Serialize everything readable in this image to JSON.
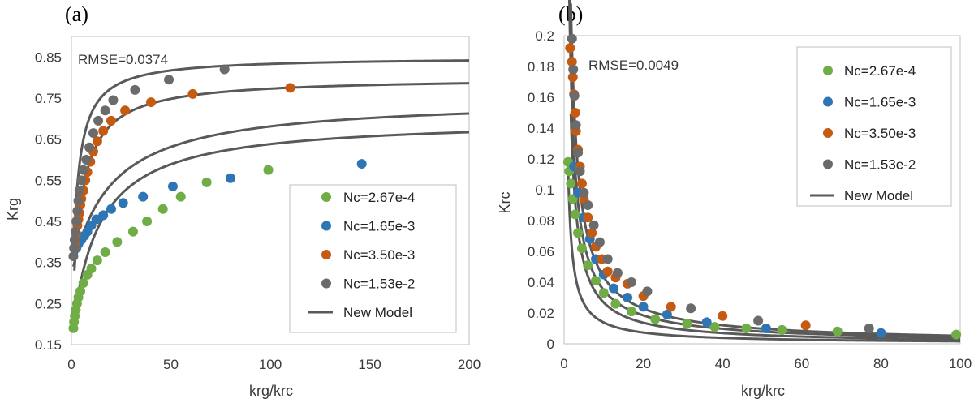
{
  "colors": {
    "green": "#70ad47",
    "blue": "#2e75b6",
    "orange": "#c55a11",
    "gray": "#6b6b6b",
    "model": "#595959"
  },
  "chart_data": [
    {
      "type": "scatter",
      "panel_label": "(a)",
      "annotation": "RMSE=0.0374",
      "xlabel": "krg/krc",
      "ylabel": "Krg",
      "xlim": [
        0,
        200
      ],
      "ylim": [
        0.15,
        0.9
      ],
      "xticks": [
        0,
        50,
        100,
        150,
        200
      ],
      "xtick_labels": [
        "0",
        "50",
        "100",
        "150",
        "200"
      ],
      "yticks": [
        0.15,
        0.25,
        0.35,
        0.45,
        0.55,
        0.65,
        0.75,
        0.85
      ],
      "ytick_labels": [
        "0.15",
        "0.25",
        "0.35",
        "0.45",
        "0.55",
        "0.65",
        "0.75",
        "0.85"
      ],
      "legend_position": "lower-right",
      "series": [
        {
          "name": "Nc=2.67e-4",
          "color_key": "green",
          "x": [
            1.0,
            1.3,
            1.7,
            2.2,
            2.8,
            3.5,
            4.5,
            6.0,
            8.0,
            10.0,
            13.0,
            17.0,
            23.0,
            31.0,
            38.0,
            46.0,
            55.0,
            68.0,
            99.0
          ],
          "y": [
            0.19,
            0.205,
            0.22,
            0.235,
            0.25,
            0.265,
            0.28,
            0.3,
            0.32,
            0.335,
            0.355,
            0.375,
            0.4,
            0.425,
            0.45,
            0.48,
            0.51,
            0.545,
            0.575
          ]
        },
        {
          "name": "Nc=1.65e-3",
          "color_key": "blue",
          "x": [
            2.5,
            3.5,
            5.0,
            6.5,
            8.0,
            10.0,
            12.5,
            16.0,
            20.0,
            26.0,
            36.0,
            51.0,
            80.0,
            146.0
          ],
          "y": [
            0.385,
            0.395,
            0.405,
            0.415,
            0.425,
            0.44,
            0.455,
            0.465,
            0.48,
            0.495,
            0.51,
            0.535,
            0.555,
            0.59
          ]
        },
        {
          "name": "Nc=3.50e-3",
          "color_key": "orange",
          "x": [
            1.5,
            2.0,
            2.5,
            3.0,
            3.5,
            4.0,
            4.5,
            5.0,
            6.0,
            7.0,
            8.0,
            9.5,
            11.0,
            13.0,
            16.0,
            20.0,
            27.0,
            40.0,
            61.0,
            110.0
          ],
          "y": [
            0.385,
            0.4,
            0.42,
            0.44,
            0.455,
            0.47,
            0.49,
            0.505,
            0.525,
            0.55,
            0.57,
            0.595,
            0.62,
            0.645,
            0.67,
            0.695,
            0.72,
            0.74,
            0.76,
            0.775
          ]
        },
        {
          "name": "Nc=1.53e-2",
          "color_key": "gray",
          "x": [
            1.0,
            1.3,
            1.6,
            2.0,
            2.5,
            3.0,
            3.5,
            4.0,
            5.0,
            6.0,
            7.5,
            9.0,
            11.0,
            13.5,
            17.0,
            21.0,
            32.0,
            49.0,
            77.0
          ],
          "y": [
            0.365,
            0.385,
            0.405,
            0.425,
            0.45,
            0.475,
            0.5,
            0.525,
            0.55,
            0.575,
            0.6,
            0.63,
            0.665,
            0.695,
            0.72,
            0.745,
            0.77,
            0.795,
            0.82
          ]
        }
      ],
      "model": {
        "name": "New Model",
        "curves": [
          {
            "x0": 1,
            "a": 0.7,
            "b": 14.0,
            "y0": 0.2
          },
          {
            "x0": 1,
            "a": 0.75,
            "b": 20.0,
            "y0": 0.34
          },
          {
            "x0": 1.5,
            "a": 0.8,
            "b": 6.0,
            "y0": 0.33
          },
          {
            "x0": 1,
            "a": 0.85,
            "b": 3.5,
            "y0": 0.36
          }
        ]
      }
    },
    {
      "type": "scatter",
      "panel_label": "(b)",
      "annotation": "RMSE=0.0049",
      "xlabel": "krg/krc",
      "ylabel": "Krc",
      "xlim": [
        0,
        100
      ],
      "ylim": [
        0,
        0.2
      ],
      "xticks": [
        0,
        20,
        40,
        60,
        80,
        100
      ],
      "xtick_labels": [
        "0",
        "20",
        "40",
        "60",
        "80",
        "100"
      ],
      "yticks": [
        0,
        0.02,
        0.04,
        0.06,
        0.08,
        0.1,
        0.12,
        0.14,
        0.16,
        0.18,
        0.2
      ],
      "ytick_labels": [
        "0",
        "0.02",
        "0.04",
        "0.06",
        "0.08",
        "0.1",
        "0.12",
        "0.14",
        "0.16",
        "0.18",
        "0.2"
      ],
      "legend_position": "top-right",
      "series": [
        {
          "name": "Nc=2.67e-4",
          "color_key": "green",
          "x": [
            1.0,
            1.3,
            1.7,
            2.2,
            2.8,
            3.5,
            4.5,
            6.0,
            8.0,
            10.0,
            13.0,
            17.0,
            23.0,
            31.0,
            38.0,
            46.0,
            55.0,
            69.0,
            99.0
          ],
          "y": [
            0.118,
            0.112,
            0.104,
            0.094,
            0.084,
            0.072,
            0.062,
            0.051,
            0.041,
            0.033,
            0.026,
            0.021,
            0.016,
            0.013,
            0.011,
            0.01,
            0.009,
            0.008,
            0.006
          ]
        },
        {
          "name": "Nc=1.65e-3",
          "color_key": "blue",
          "x": [
            2.5,
            3.5,
            5.0,
            6.5,
            8.0,
            10.0,
            12.5,
            16.0,
            20.0,
            26.0,
            36.0,
            51.0,
            80.0
          ],
          "y": [
            0.115,
            0.098,
            0.082,
            0.068,
            0.055,
            0.045,
            0.036,
            0.03,
            0.024,
            0.019,
            0.014,
            0.01,
            0.007
          ]
        },
        {
          "name": "Nc=3.50e-3",
          "color_key": "orange",
          "x": [
            1.5,
            2.0,
            2.2,
            2.5,
            2.8,
            3.0,
            3.5,
            4.0,
            4.5,
            5.0,
            6.0,
            7.0,
            8.0,
            9.5,
            11.0,
            13.0,
            16.0,
            20.0,
            27.0,
            40.0,
            61.0
          ],
          "y": [
            0.192,
            0.183,
            0.173,
            0.162,
            0.15,
            0.138,
            0.126,
            0.115,
            0.104,
            0.094,
            0.082,
            0.072,
            0.063,
            0.055,
            0.047,
            0.043,
            0.039,
            0.031,
            0.024,
            0.018,
            0.012
          ]
        },
        {
          "name": "Nc=1.53e-2",
          "color_key": "gray",
          "x": [
            2.0,
            2.3,
            2.6,
            3.0,
            3.5,
            4.0,
            5.0,
            6.0,
            7.5,
            9.0,
            11.0,
            13.5,
            17.0,
            21.0,
            32.0,
            49.0,
            77.0
          ],
          "y": [
            0.198,
            0.178,
            0.161,
            0.142,
            0.124,
            0.112,
            0.098,
            0.09,
            0.077,
            0.066,
            0.055,
            0.046,
            0.04,
            0.034,
            0.023,
            0.015,
            0.01
          ]
        }
      ],
      "model": {
        "name": "New Model",
        "curves": [
          {
            "x0": 1.0,
            "k": 0.115,
            "p": 0.92
          },
          {
            "x0": 1.7,
            "k": 0.25,
            "p": 0.97
          },
          {
            "x0": 1.2,
            "k": 0.29,
            "p": 0.92
          },
          {
            "x0": 1.7,
            "k": 0.36,
            "p": 0.92
          }
        ]
      }
    }
  ]
}
